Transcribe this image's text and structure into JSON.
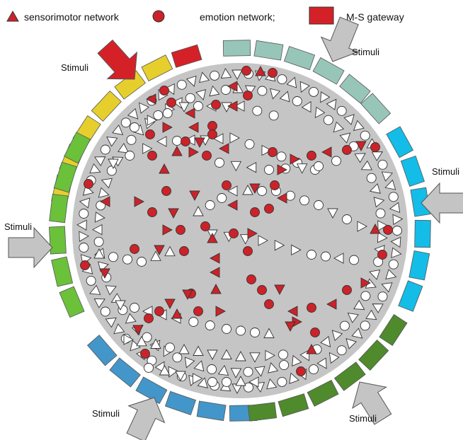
{
  "legend": {
    "sensorimotor": "sensorimotor network",
    "emotion": "emotion network;",
    "gateway": "M-S gateway"
  },
  "stimuli_label": "Stimuli",
  "colors": {
    "gateway_red": "#d42128",
    "network_red": "#cc2229",
    "outline": "#333333",
    "disk": "#c5c5c5",
    "arrow_grey": "#c4c4c4",
    "yellow": "#e6cf2c",
    "teal": "#97c6b9",
    "cyan": "#13bde8",
    "light_green": "#6bc13a",
    "steel_blue": "#4396c9",
    "dark_green": "#4f8a2c"
  },
  "rim_groups": [
    {
      "name": "yellow-rim",
      "color": "#e6cf2c",
      "count": 6
    },
    {
      "name": "teal-rim",
      "color": "#97c6b9",
      "count": 6
    },
    {
      "name": "cyan-rim",
      "color": "#13bde8",
      "count": 6
    },
    {
      "name": "green-rim",
      "color": "#6bc13a",
      "count": 6
    },
    {
      "name": "blue-rim",
      "color": "#4396c9",
      "count": 6
    },
    {
      "name": "dark-green-rim",
      "color": "#4f8a2c",
      "count": 6
    }
  ]
}
